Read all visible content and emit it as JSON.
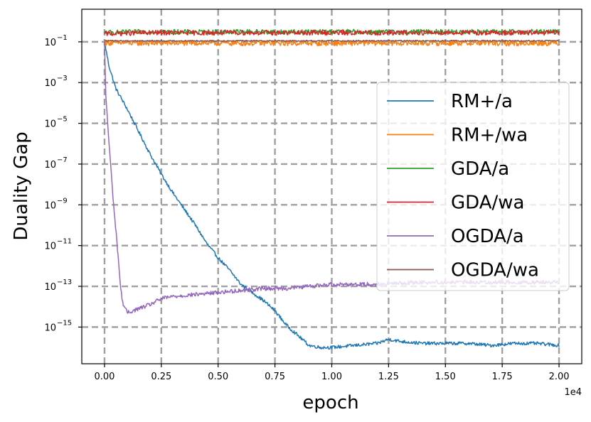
{
  "chart_data": {
    "type": "line",
    "title": "",
    "xlabel": "epoch",
    "ylabel": "Duality Gap",
    "x_offset_label": "1e4",
    "x_scale_factor": 10000,
    "xlim": [
      -0.1,
      2.1
    ],
    "ylim_log10": [
      -16.8,
      0.6
    ],
    "yscale": "log",
    "grid": true,
    "legend_position": "right",
    "x_ticks": [
      0.0,
      0.25,
      0.5,
      0.75,
      1.0,
      1.25,
      1.5,
      1.75,
      2.0
    ],
    "x_tick_labels": [
      "0.00",
      "0.25",
      "0.50",
      "0.75",
      "1.00",
      "1.25",
      "1.50",
      "1.75",
      "2.00"
    ],
    "y_tick_exponents": [
      -1,
      -3,
      -5,
      -7,
      -9,
      -11,
      -13,
      -15
    ],
    "y_tick_base": "10",
    "y_tick_labels": [
      "−1",
      "−3",
      "−5",
      "−7",
      "−9",
      "−11",
      "−13",
      "−15"
    ],
    "series": [
      {
        "name": "RM+/a",
        "color": "#1f77b4",
        "x": [
          0.0,
          0.02,
          0.05,
          0.1,
          0.15,
          0.2,
          0.25,
          0.3,
          0.35,
          0.4,
          0.45,
          0.5,
          0.55,
          0.6,
          0.65,
          0.7,
          0.75,
          0.8,
          0.85,
          0.88,
          0.9,
          0.95,
          1.0,
          1.1,
          1.2,
          1.25,
          1.3,
          1.4,
          1.5,
          1.6,
          1.7,
          1.8,
          1.9,
          2.0
        ],
        "log10_y": [
          -1.0,
          -2.2,
          -3.3,
          -4.3,
          -5.4,
          -6.5,
          -7.5,
          -8.4,
          -9.2,
          -10.0,
          -10.9,
          -11.6,
          -12.2,
          -12.9,
          -13.3,
          -13.7,
          -14.2,
          -14.9,
          -15.4,
          -15.7,
          -15.9,
          -16.0,
          -16.0,
          -15.9,
          -15.8,
          -15.6,
          -15.7,
          -15.8,
          -15.8,
          -15.8,
          -15.9,
          -15.8,
          -15.8,
          -15.9
        ],
        "noise": 0.08
      },
      {
        "name": "RM+/wa",
        "color": "#ff7f0e",
        "x": [
          0.0,
          0.05,
          0.2,
          0.4,
          0.6,
          0.8,
          1.0,
          1.2,
          1.4,
          1.6,
          1.8,
          2.0
        ],
        "log10_y": [
          -1.05,
          -1.05,
          -1.07,
          -1.06,
          -1.07,
          -1.06,
          -1.07,
          -1.06,
          -1.06,
          -1.06,
          -1.07,
          -1.06
        ],
        "noise": 0.13
      },
      {
        "name": "GDA/a",
        "color": "#2ca02c",
        "x": [
          0.0,
          0.2,
          0.4,
          0.6,
          0.8,
          1.0,
          1.2,
          1.4,
          1.6,
          1.8,
          2.0
        ],
        "log10_y": [
          -0.55,
          -0.5,
          -0.52,
          -0.5,
          -0.52,
          -0.5,
          -0.52,
          -0.51,
          -0.5,
          -0.51,
          -0.5
        ],
        "noise": 0.12
      },
      {
        "name": "GDA/wa",
        "color": "#d62728",
        "x": [
          0.0,
          0.2,
          0.4,
          0.6,
          0.8,
          1.0,
          1.2,
          1.4,
          1.6,
          1.8,
          2.0
        ],
        "log10_y": [
          -0.6,
          -0.55,
          -0.56,
          -0.55,
          -0.56,
          -0.55,
          -0.56,
          -0.55,
          -0.55,
          -0.56,
          -0.55
        ],
        "noise": 0.12
      },
      {
        "name": "OGDA/a",
        "color": "#9467bd",
        "x": [
          0.0,
          0.005,
          0.02,
          0.04,
          0.06,
          0.07,
          0.08,
          0.1,
          0.15,
          0.2,
          0.25,
          0.3,
          0.4,
          0.5,
          0.6,
          0.7,
          0.8,
          0.9,
          1.0,
          1.2,
          1.4,
          1.6,
          1.8,
          2.0
        ],
        "log10_y": [
          -1.0,
          -3.5,
          -6.0,
          -9.0,
          -11.5,
          -13.0,
          -13.8,
          -14.3,
          -14.1,
          -13.9,
          -13.6,
          -13.5,
          -13.4,
          -13.3,
          -13.2,
          -13.1,
          -13.1,
          -13.0,
          -12.9,
          -12.9,
          -12.8,
          -12.8,
          -12.8,
          -12.8
        ],
        "noise": 0.1
      },
      {
        "name": "OGDA/wa",
        "color": "#8c564b",
        "x": [
          0.0,
          0.4,
          0.8,
          1.2,
          1.6,
          2.0
        ],
        "log10_y": [
          -0.95,
          -0.95,
          -0.95,
          -0.95,
          -0.95,
          -0.95
        ],
        "noise": 0.03
      }
    ]
  }
}
